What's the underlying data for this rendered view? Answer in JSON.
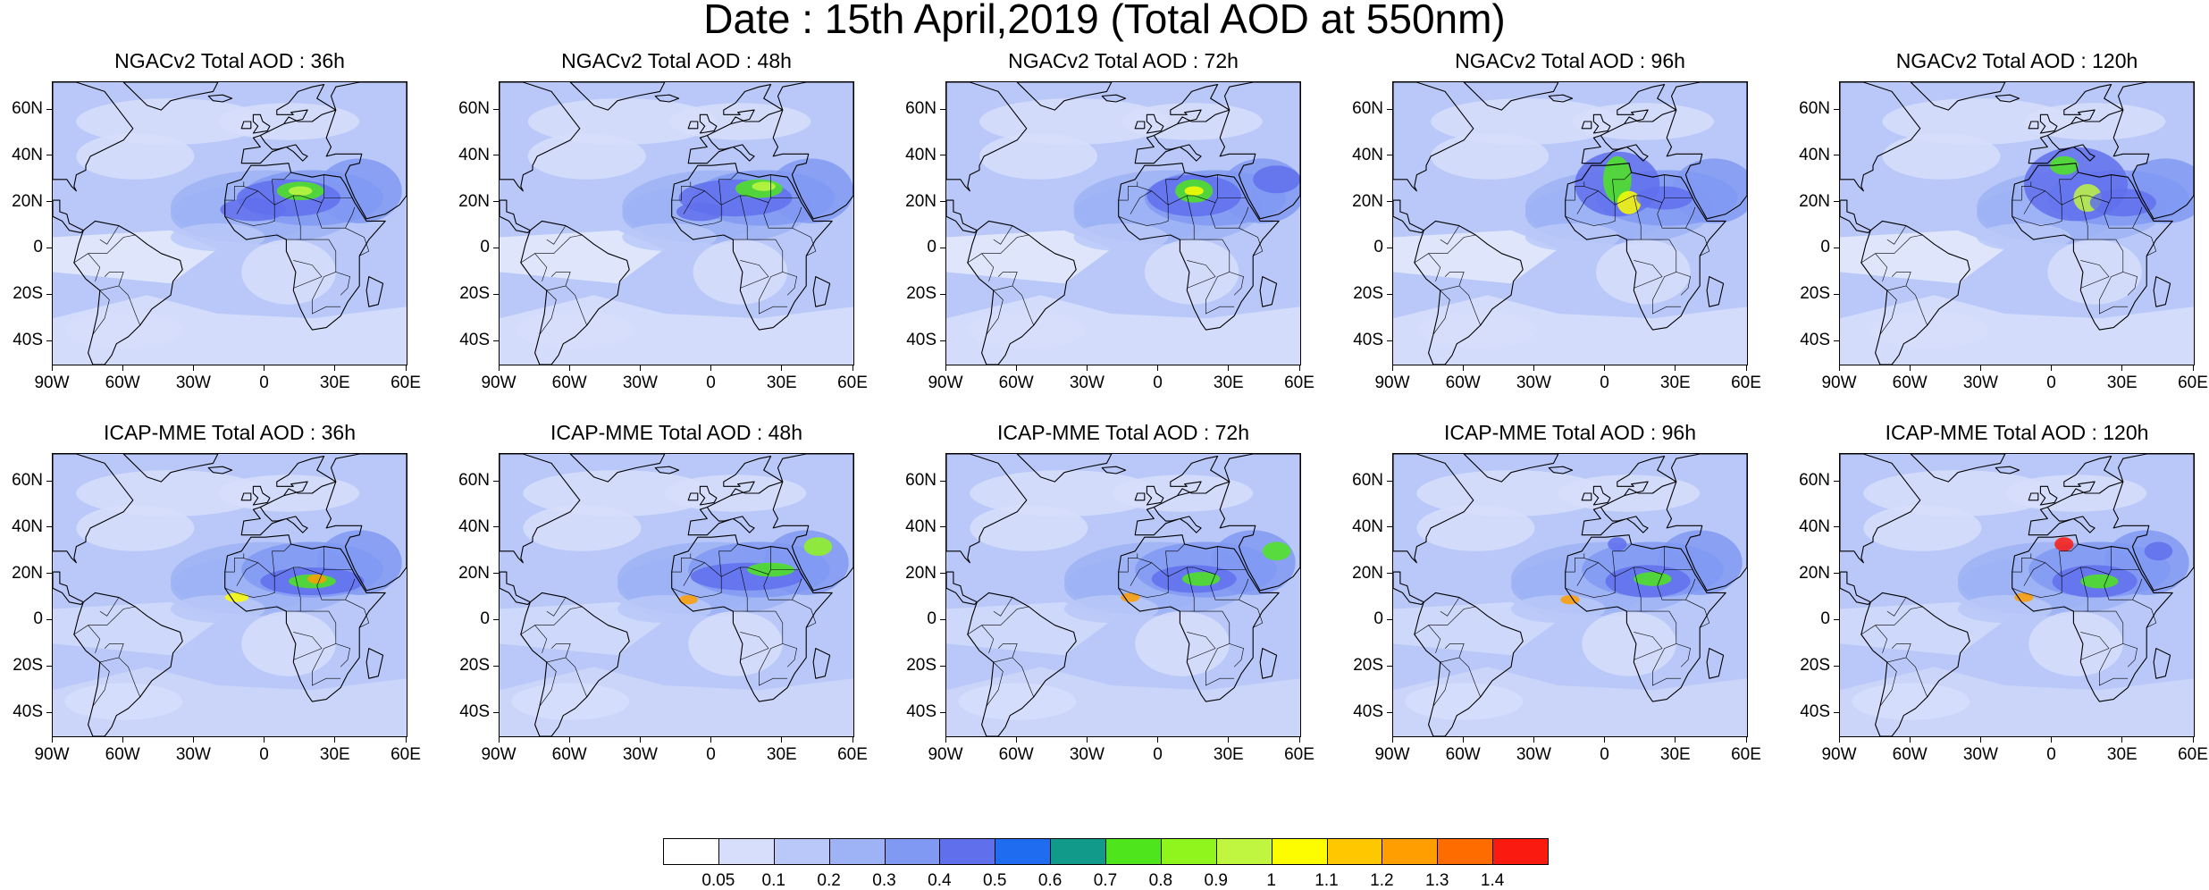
{
  "title": "Date : 15th April,2019 (Total AOD at 550nm)",
  "rows": [
    {
      "model": "NGACv2",
      "panels": [
        {
          "title": "NGACv2 Total AOD : 36h",
          "hours": 36
        },
        {
          "title": "NGACv2 Total AOD : 48h",
          "hours": 48
        },
        {
          "title": "NGACv2 Total AOD : 72h",
          "hours": 72
        },
        {
          "title": "NGACv2 Total AOD : 96h",
          "hours": 96
        },
        {
          "title": "NGACv2 Total AOD : 120h",
          "hours": 120
        }
      ]
    },
    {
      "model": "ICAP-MME",
      "panels": [
        {
          "title": "ICAP-MME Total AOD : 36h",
          "hours": 36
        },
        {
          "title": "ICAP-MME Total AOD : 48h",
          "hours": 48
        },
        {
          "title": "ICAP-MME Total AOD : 72h",
          "hours": 72
        },
        {
          "title": "ICAP-MME Total AOD : 96h",
          "hours": 96
        },
        {
          "title": "ICAP-MME Total AOD : 120h",
          "hours": 120
        }
      ]
    }
  ],
  "map_extent": {
    "lon": [
      -90,
      60
    ],
    "lat": [
      -50,
      72
    ]
  },
  "lat_ticks": [
    "60N",
    "40N",
    "20N",
    "0",
    "20S",
    "40S"
  ],
  "lat_values": [
    60,
    40,
    20,
    0,
    -20,
    -40
  ],
  "lon_ticks": [
    "90W",
    "60W",
    "30W",
    "0",
    "30E",
    "60E"
  ],
  "lon_values": [
    -90,
    -60,
    -30,
    0,
    30,
    60
  ],
  "colorbar": {
    "labels": [
      "0.05",
      "0.1",
      "0.2",
      "0.3",
      "0.4",
      "0.5",
      "0.6",
      "0.7",
      "0.8",
      "0.9",
      "1",
      "1.1",
      "1.2",
      "1.3",
      "1.4"
    ],
    "colors": [
      "#ffffff",
      "#d7defc",
      "#b9c8f8",
      "#9db3f5",
      "#8099f2",
      "#6070ec",
      "#1f6cf0",
      "#119a8a",
      "#4fe51d",
      "#8ff51c",
      "#c0f640",
      "#fdfd00",
      "#fec700",
      "#fe9e00",
      "#fe6c00",
      "#fa1a0f"
    ]
  },
  "background_color": "#b9c8f8"
}
